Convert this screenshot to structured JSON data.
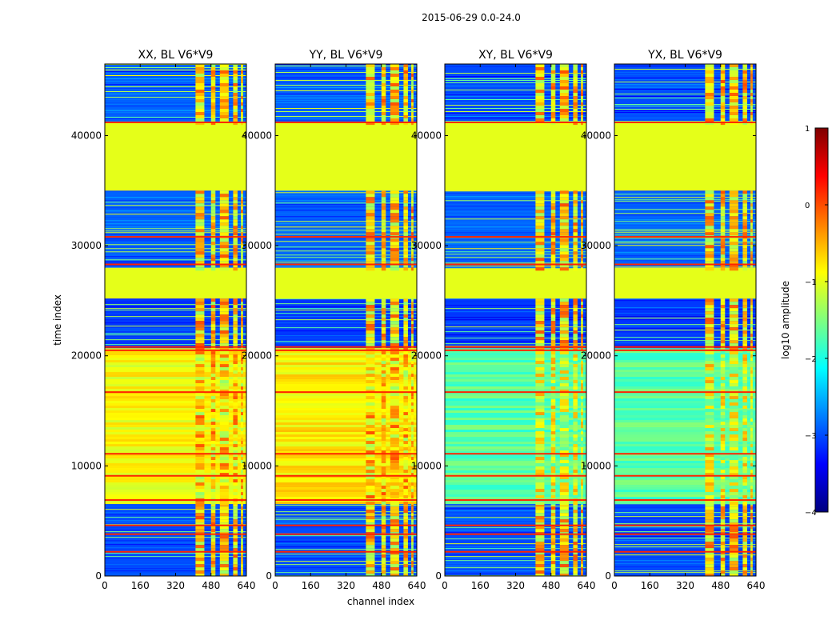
{
  "figure_title": "2015-06-29 0.0-24.0",
  "chart_data": [
    {
      "type": "heatmap",
      "title": "XX, BL V6*V9",
      "xlabel": "",
      "ylabel": "time index",
      "xlim": [
        0,
        640
      ],
      "ylim": [
        0,
        46500
      ],
      "xticks": [
        0,
        160,
        320,
        480,
        640
      ],
      "yticks": [
        0,
        10000,
        20000,
        30000,
        40000
      ]
    },
    {
      "type": "heatmap",
      "title": "YY, BL V6*V9",
      "xlabel": "channel index",
      "ylabel": "",
      "xlim": [
        0,
        640
      ],
      "ylim": [
        0,
        46500
      ],
      "xticks": [
        0,
        160,
        320,
        480,
        640
      ],
      "yticks": [
        0,
        10000,
        20000,
        30000,
        40000
      ]
    },
    {
      "type": "heatmap",
      "title": "XY, BL V6*V9",
      "xlabel": "",
      "ylabel": "",
      "xlim": [
        0,
        640
      ],
      "ylim": [
        0,
        46500
      ],
      "xticks": [
        0,
        160,
        320,
        480,
        640
      ],
      "yticks": [
        0,
        10000,
        20000,
        30000,
        40000
      ]
    },
    {
      "type": "heatmap",
      "title": "YX, BL V6*V9",
      "xlabel": "",
      "ylabel": "",
      "xlim": [
        0,
        640
      ],
      "ylim": [
        0,
        46500
      ],
      "xticks": [
        0,
        160,
        320,
        480,
        640
      ],
      "yticks": [
        0,
        10000,
        20000,
        30000,
        40000
      ]
    }
  ],
  "colorbar": {
    "label": "log10 amplitude",
    "range": [
      -4,
      1
    ],
    "ticks": [
      1,
      0,
      -1,
      -2,
      -3,
      -4
    ],
    "tick_labels": [
      "1",
      "0",
      "−1",
      "−2",
      "−3",
      "−4"
    ],
    "colormap": [
      "#00007f",
      "#0000ff",
      "#007fff",
      "#00ffff",
      "#7fff7f",
      "#ffff00",
      "#ff7f00",
      "#ff0000",
      "#7f0000"
    ]
  },
  "bands": {
    "note": "time-index ranges with characteristic log10 amplitude per panel (XX, YY, XY, YX)",
    "segments": [
      {
        "t": [
          0,
          6600
        ],
        "level": [
          -3.0,
          -3.0,
          -3.0,
          -3.0
        ],
        "kind": "striped"
      },
      {
        "t": [
          6600,
          20700
        ],
        "level": [
          -0.9,
          -0.8,
          -1.7,
          -1.7
        ],
        "kind": "active"
      },
      {
        "t": [
          20700,
          25200
        ],
        "level": [
          -3.1,
          -3.1,
          -3.1,
          -3.1
        ],
        "kind": "striped"
      },
      {
        "t": [
          25200,
          28000
        ],
        "level": [
          -1.0,
          -1.0,
          -1.0,
          -1.0
        ],
        "kind": "flat"
      },
      {
        "t": [
          28000,
          35000
        ],
        "level": [
          -2.9,
          -2.9,
          -2.9,
          -2.9
        ],
        "kind": "striped"
      },
      {
        "t": [
          35000,
          41200
        ],
        "level": [
          -1.0,
          -1.0,
          -1.0,
          -1.0
        ],
        "kind": "flat"
      },
      {
        "t": [
          41200,
          46500
        ],
        "level": [
          -2.9,
          -2.9,
          -3.0,
          -3.0
        ],
        "kind": "striped"
      }
    ],
    "rfi_channels": [
      [
        410,
        450
      ],
      [
        480,
        500
      ],
      [
        520,
        560
      ],
      [
        580,
        600
      ],
      [
        615,
        625
      ]
    ],
    "rfi_level": -0.7,
    "hot_rows": [
      2200,
      3800,
      4600,
      6900,
      9100,
      11100,
      16700,
      20500,
      20800,
      28300,
      30800,
      41200
    ]
  }
}
